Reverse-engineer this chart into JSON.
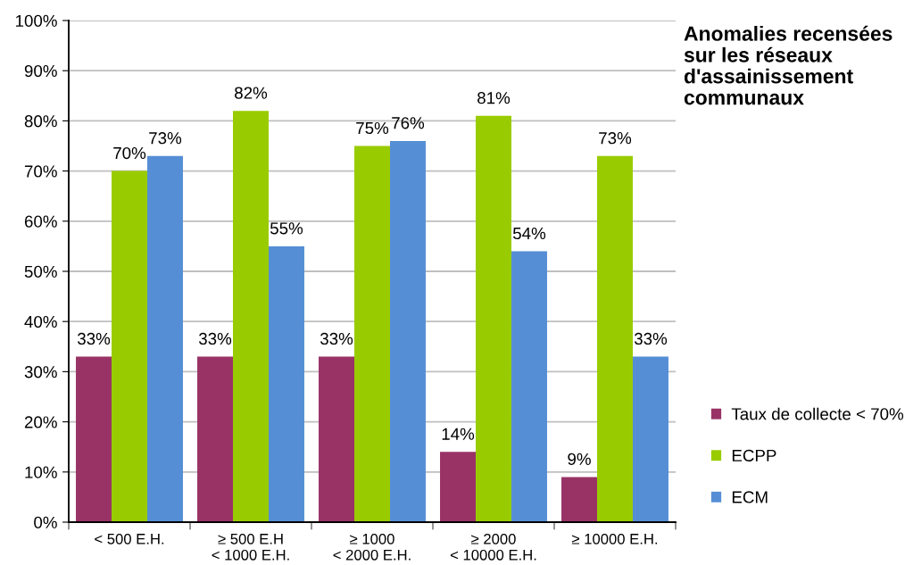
{
  "chart_data": {
    "type": "bar",
    "title": "Anomalies recensées sur les réseaux d'assainissement communaux",
    "categories": [
      "< 500 E.H.",
      "≥ 500 E.H\n< 1000 E.H.",
      "≥ 1000\n< 2000 E.H.",
      "≥ 2000\n< 10000 E.H.",
      "≥ 10000 E.H."
    ],
    "series": [
      {
        "name": "Taux de collecte < 70%",
        "color": "#993366",
        "values": [
          33,
          33,
          33,
          14,
          9
        ],
        "value_labels": [
          "33%",
          "33%",
          "33%",
          "14%",
          "9%"
        ]
      },
      {
        "name": "ECPP",
        "color": "#99cc00",
        "values": [
          70,
          82,
          75,
          81,
          73
        ],
        "value_labels": [
          "70%",
          "82%",
          "75%",
          "81%",
          "73%"
        ]
      },
      {
        "name": "ECM",
        "color": "#558ed5",
        "values": [
          73,
          55,
          76,
          54,
          33
        ],
        "value_labels": [
          "73%",
          "55%",
          "76%",
          "54%",
          "33%"
        ]
      }
    ],
    "ylim": [
      0,
      100
    ],
    "yticks": [
      {
        "value": 0,
        "label": "0%"
      },
      {
        "value": 10,
        "label": "10%"
      },
      {
        "value": 20,
        "label": "20%"
      },
      {
        "value": 30,
        "label": "30%"
      },
      {
        "value": 40,
        "label": "40%"
      },
      {
        "value": 50,
        "label": "50%"
      },
      {
        "value": 60,
        "label": "60%"
      },
      {
        "value": 70,
        "label": "70%"
      },
      {
        "value": 80,
        "label": "80%"
      },
      {
        "value": 90,
        "label": "90%"
      },
      {
        "value": 100,
        "label": "100%"
      }
    ],
    "grid": "y",
    "legend": "right"
  }
}
